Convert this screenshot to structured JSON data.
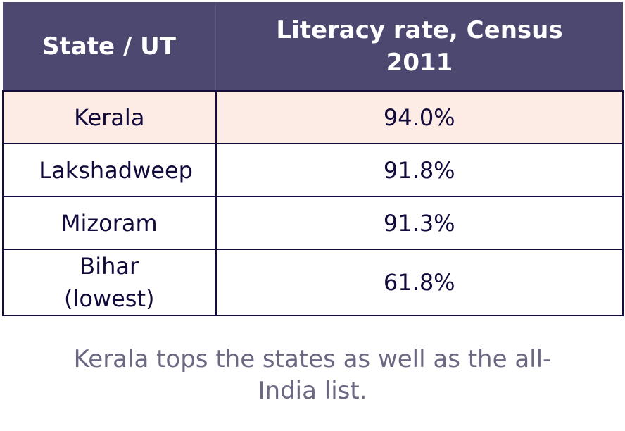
{
  "table": {
    "columns": [
      "State / UT",
      "Literacy rate, Census 2011"
    ],
    "rows": [
      [
        "Kerala",
        "94.0%"
      ],
      [
        "Lakshadweep",
        "91.8%"
      ],
      [
        "Mizoram",
        "91.3%"
      ],
      [
        "Bihar (lowest)",
        "61.8%"
      ]
    ]
  },
  "caption": "Kerala tops the states as well as the all-India list."
}
